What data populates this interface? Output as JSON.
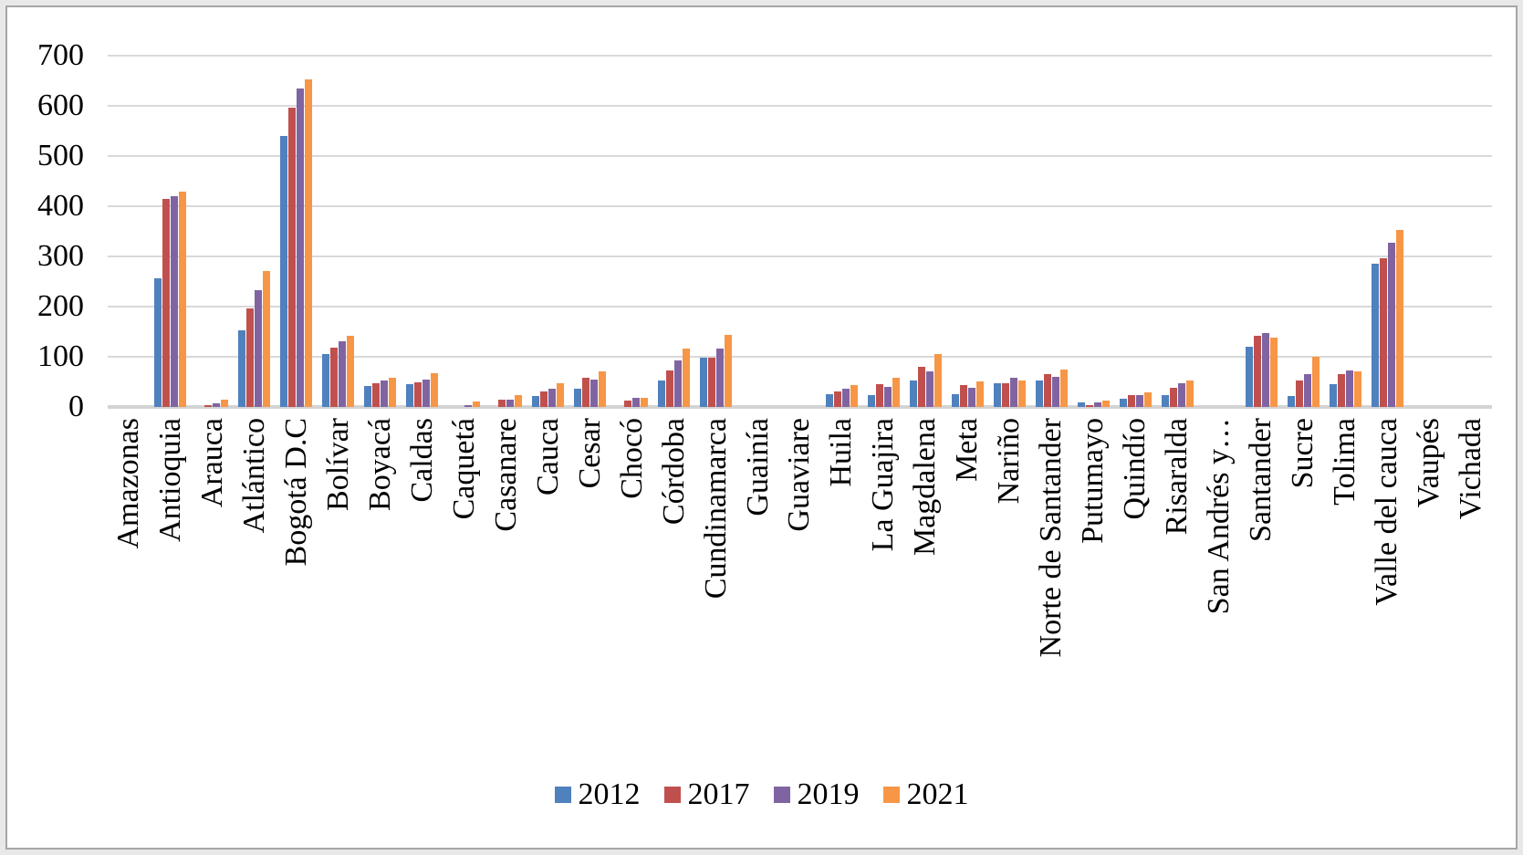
{
  "chart_data": {
    "type": "bar",
    "title": "",
    "xlabel": "",
    "ylabel": "",
    "ylim": [
      0,
      700
    ],
    "yticks": [
      0,
      100,
      200,
      300,
      400,
      500,
      600,
      700
    ],
    "grid": "horizontal",
    "gridline_color": "#d9d9d9",
    "legend_position": "bottom",
    "categories": [
      "Amazonas",
      "Antioquia",
      "Arauca",
      "Atlántico",
      "Bogotá D.C",
      "Bolívar",
      "Boyacá",
      "Caldas",
      "Caquetá",
      "Casanare",
      "Cauca",
      "Cesar",
      "Chocó",
      "Córdoba",
      "Cundinamarca",
      "Guainía",
      "Guaviare",
      "Huila",
      "La Guajira",
      "Magdalena",
      "Meta",
      "Nariño",
      "Norte de Santander",
      "Putumayo",
      "Quindío",
      "Risaralda",
      "San Andrés y…",
      "Santander",
      "Sucre",
      "Tolima",
      "Valle del cauca",
      "Vaupés",
      "Vichada"
    ],
    "series": [
      {
        "name": "2012",
        "color": "#4F81BD",
        "values": [
          0,
          256,
          0,
          152,
          540,
          105,
          42,
          45,
          0,
          0,
          22,
          36,
          0,
          52,
          98,
          0,
          0,
          25,
          24,
          52,
          26,
          47,
          52,
          9,
          17,
          24,
          0,
          120,
          22,
          45,
          285,
          0,
          0
        ]
      },
      {
        "name": "2017",
        "color": "#C0504D",
        "values": [
          0,
          415,
          4,
          196,
          597,
          118,
          47,
          49,
          0,
          14,
          31,
          59,
          13,
          73,
          98,
          0,
          0,
          30,
          45,
          80,
          43,
          47,
          66,
          4,
          24,
          38,
          0,
          142,
          52,
          65,
          297,
          0,
          0
        ]
      },
      {
        "name": "2019",
        "color": "#8064A2",
        "values": [
          0,
          420,
          8,
          233,
          635,
          130,
          52,
          55,
          4,
          14,
          36,
          55,
          18,
          93,
          116,
          0,
          0,
          36,
          40,
          70,
          38,
          58,
          60,
          9,
          24,
          47,
          0,
          148,
          65,
          73,
          328,
          0,
          0
        ]
      },
      {
        "name": "2021",
        "color": "#F79646",
        "values": [
          0,
          429,
          14,
          270,
          652,
          141,
          58,
          67,
          10,
          23,
          47,
          71,
          18,
          117,
          144,
          0,
          0,
          43,
          58,
          105,
          50,
          52,
          74,
          13,
          29,
          52,
          0,
          138,
          100,
          70,
          352,
          0,
          0
        ]
      }
    ]
  }
}
